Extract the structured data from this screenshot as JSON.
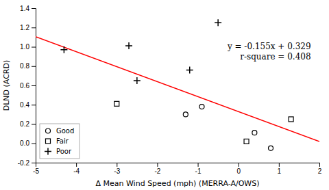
{
  "chart_data": {
    "type": "scatter",
    "xlabel": "Δ Mean Wind Speed (mph) (MERRA-A/OWS)",
    "ylabel": "DLND (ACRD)",
    "xlim": [
      -5,
      2
    ],
    "ylim": [
      -0.2,
      1.4
    ],
    "xticks": [
      -5,
      -4,
      -3,
      -2,
      -1,
      0,
      1,
      2
    ],
    "yticks": [
      -0.2,
      {
        "value": 0.0,
        "label": "0.0"
      },
      0.2,
      0.4,
      0.6,
      0.8,
      {
        "value": 1.0,
        "label": "1.0"
      },
      1.2,
      1.4
    ],
    "grid": false,
    "legend": "lower left",
    "annotations": [
      "y = -0.155x + 0.329",
      "r-square = 0.408"
    ],
    "series": [
      {
        "type": "line",
        "color": "#ff0000",
        "x": [
          -5,
          2
        ],
        "values": [
          1.104,
          0.019
        ]
      },
      {
        "name": "Good",
        "type": "scatter",
        "marker": "circle",
        "color": "#000000",
        "x": [
          -1.3,
          -0.9,
          0.4,
          0.8
        ],
        "values": [
          0.3,
          0.38,
          0.11,
          -0.05
        ]
      },
      {
        "name": "Fair",
        "type": "scatter",
        "marker": "square",
        "color": "#000000",
        "x": [
          -3.0,
          0.2,
          1.3
        ],
        "values": [
          0.41,
          0.02,
          0.25
        ]
      },
      {
        "name": "Poor",
        "type": "scatter",
        "marker": "plus",
        "color": "#000000",
        "x": [
          -4.3,
          -2.7,
          -2.5,
          -1.2,
          -0.5
        ],
        "values": [
          0.97,
          1.01,
          0.65,
          0.76,
          1.25
        ]
      }
    ]
  }
}
